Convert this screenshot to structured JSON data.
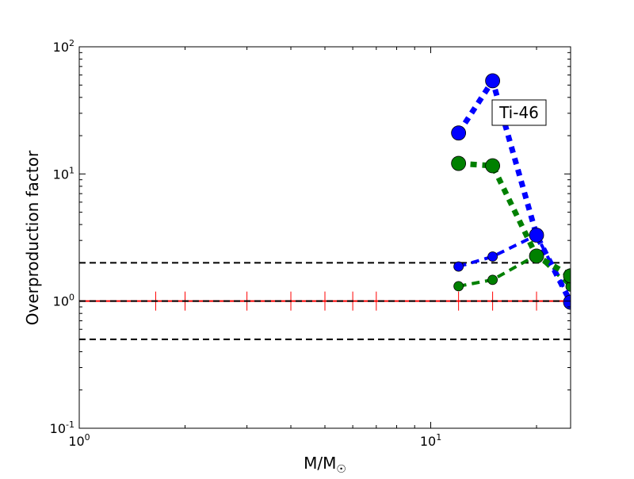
{
  "chart_data": {
    "type": "line",
    "xlabel": "M/M",
    "xlabel_sub": "☉",
    "ylabel": "Overproduction factor",
    "xscale": "log",
    "yscale": "log",
    "xlim": [
      1,
      25
    ],
    "ylim": [
      0.1,
      100
    ],
    "x_ticks": [
      {
        "value": 1,
        "base": "10",
        "exp": "0"
      },
      {
        "value": 10,
        "base": "10",
        "exp": "1"
      }
    ],
    "y_ticks": [
      {
        "value": 0.1,
        "base": "10",
        "exp": "-1"
      },
      {
        "value": 1,
        "base": "10",
        "exp": "0"
      },
      {
        "value": 10,
        "base": "10",
        "exp": "1"
      },
      {
        "value": 100,
        "base": "10",
        "exp": "2"
      }
    ],
    "annotation": "Ti-46",
    "grid": false,
    "series": [
      {
        "color": "#0000ff",
        "style": "thick-dotted",
        "marker": "large-circle",
        "x": [
          12,
          15,
          20,
          25
        ],
        "y": [
          21,
          54,
          3.3,
          0.98
        ]
      },
      {
        "color": "#008000",
        "style": "thick-dotted",
        "marker": "large-circle",
        "x": [
          12,
          15,
          20,
          25
        ],
        "y": [
          12.1,
          11.6,
          2.26,
          1.58
        ]
      },
      {
        "color": "#0000ff",
        "style": "dashed",
        "marker": "small-circle",
        "x": [
          12,
          15,
          20,
          25
        ],
        "y": [
          1.87,
          2.24,
          3.3,
          1.0
        ]
      },
      {
        "color": "#008000",
        "style": "dashed",
        "marker": "small-circle",
        "x": [
          12,
          15,
          20,
          25
        ],
        "y": [
          1.31,
          1.47,
          2.3,
          1.3
        ]
      }
    ],
    "reference_lines": [
      {
        "y": 2,
        "color": "#000000",
        "style": "dashed"
      },
      {
        "y": 1,
        "color": "#000000",
        "style": "dashed"
      },
      {
        "y": 0.5,
        "color": "#000000",
        "style": "dashed"
      }
    ],
    "solar_line": {
      "y": 1,
      "color": "#ff0000",
      "errorbar_x": [
        1.65,
        2,
        3,
        4,
        5,
        6,
        7,
        12,
        15,
        20
      ]
    }
  }
}
